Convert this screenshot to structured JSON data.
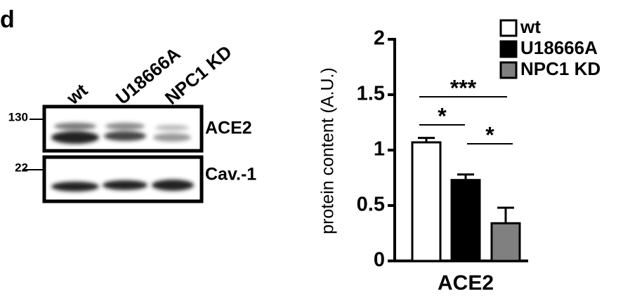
{
  "panel_label": "d",
  "blot": {
    "lanes": [
      "wt",
      "U18666A",
      "NPC1 KD"
    ],
    "rows": [
      {
        "label": "ACE2",
        "marker": "130"
      },
      {
        "label": "Cav.-1",
        "marker": "22"
      }
    ]
  },
  "chart_data": {
    "type": "bar",
    "categories": [
      "ACE2"
    ],
    "ylabel": "protein content (A.U.)",
    "ylim": [
      0,
      2
    ],
    "yticks": [
      0,
      0.5,
      1,
      1.5,
      2
    ],
    "legend": "top-right",
    "series": [
      {
        "name": "wt",
        "color": "#ffffff",
        "values": [
          1.07
        ],
        "errors": [
          0.04
        ]
      },
      {
        "name": "U18666A",
        "color": "#000000",
        "values": [
          0.73
        ],
        "errors": [
          0.05
        ]
      },
      {
        "name": "NPC1 KD",
        "color": "#808080",
        "values": [
          0.34
        ],
        "errors": [
          0.14
        ]
      }
    ],
    "annotations": [
      "***",
      "*",
      "*"
    ]
  }
}
